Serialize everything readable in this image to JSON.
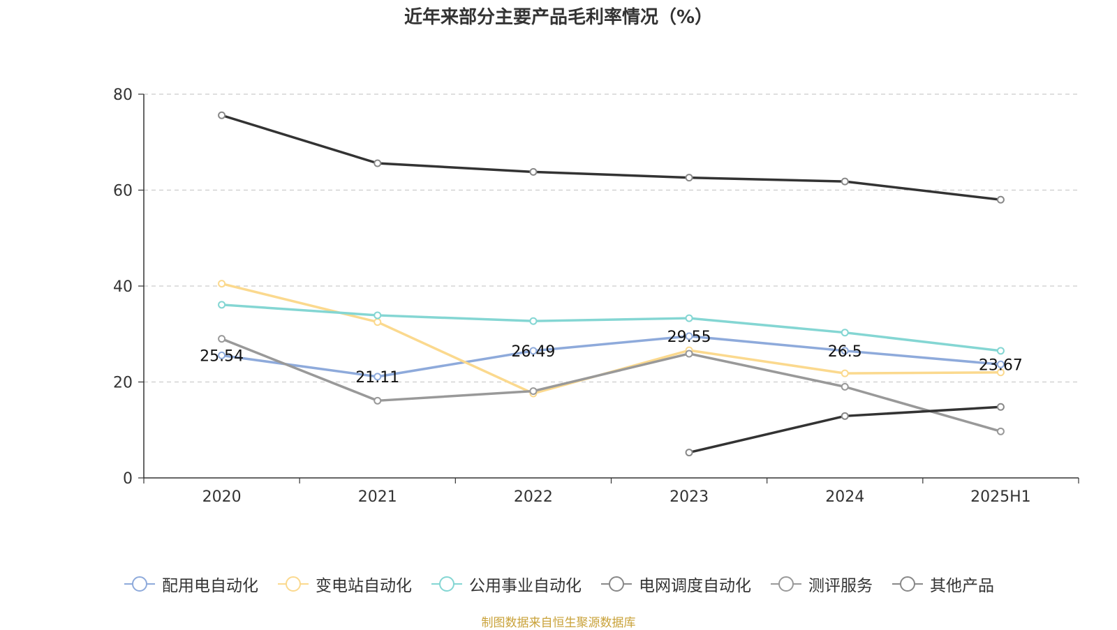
{
  "title": "近年来部分主要产品毛利率情况（%）",
  "source_note": "制图数据来自恒生聚源数据库",
  "chart_data": {
    "type": "line",
    "title": "近年来部分主要产品毛利率情况（%）",
    "xlabel": "",
    "ylabel": "",
    "categories": [
      "2020",
      "2021",
      "2022",
      "2023",
      "2024",
      "2025H1"
    ],
    "ylim": [
      0,
      80
    ],
    "yticks": [
      0,
      20,
      40,
      60,
      80
    ],
    "grid": true,
    "legend_position": "bottom",
    "series": [
      {
        "name": "配用电自动化",
        "color": "#8eaadb",
        "values": [
          25.54,
          21.11,
          26.49,
          29.55,
          26.5,
          23.67
        ],
        "labels": [
          "25.54",
          "21.11",
          "26.49",
          "29.55",
          "26.5",
          "23.67"
        ]
      },
      {
        "name": "变电站自动化",
        "color": "#fbd98e",
        "values": [
          40.5,
          32.5,
          17.6,
          26.6,
          21.8,
          22.0
        ]
      },
      {
        "name": "公用事业自动化",
        "color": "#84d6d3",
        "values": [
          36.1,
          33.9,
          32.7,
          33.3,
          30.3,
          26.5
        ]
      },
      {
        "name": "电网调度自动化",
        "color": "#333333",
        "values": [
          75.6,
          65.6,
          63.8,
          62.6,
          61.8,
          58.0
        ]
      },
      {
        "name": "测评服务",
        "color": "#999999",
        "values": [
          29.0,
          16.1,
          18.1,
          25.9,
          19.0,
          9.7
        ]
      },
      {
        "name": "其他产品",
        "color": "#333333",
        "values": [
          null,
          null,
          null,
          5.3,
          12.9,
          14.8
        ]
      }
    ]
  }
}
